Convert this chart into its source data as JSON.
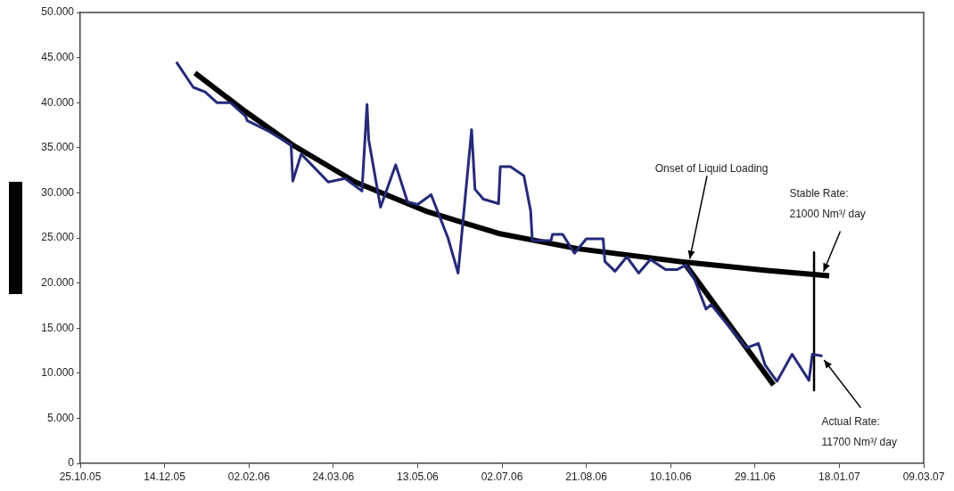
{
  "chart_data": {
    "type": "line",
    "marker": "none",
    "line_style": "solid",
    "legend": false,
    "grid": false,
    "xlim": [
      "2005-10-25",
      "2007-03-09"
    ],
    "xticks": [
      {
        "value": "2005-10-25",
        "label": "25.10.05"
      },
      {
        "value": "2005-12-14",
        "label": "14.12.05"
      },
      {
        "value": "2006-02-02",
        "label": "02.02.06"
      },
      {
        "value": "2006-03-24",
        "label": "24.03.06"
      },
      {
        "value": "2006-05-13",
        "label": "13.05.06"
      },
      {
        "value": "2006-07-02",
        "label": "02.07.06"
      },
      {
        "value": "2006-08-21",
        "label": "21.08.06"
      },
      {
        "value": "2006-10-10",
        "label": "10.10.06"
      },
      {
        "value": "2006-11-29",
        "label": "29.11.06"
      },
      {
        "value": "2007-01-18",
        "label": "18.01.07"
      },
      {
        "value": "2007-03-09",
        "label": "09.03.07"
      }
    ],
    "ylim": [
      0,
      50000
    ],
    "yticks": [
      0,
      {
        "value": 5000,
        "label": "5.000"
      },
      {
        "value": 10000,
        "label": "10.000"
      },
      {
        "value": 15000,
        "label": "15.000"
      },
      {
        "value": 20000,
        "label": "20.000"
      },
      {
        "value": 25000,
        "label": "25.000"
      },
      {
        "value": 30000,
        "label": "30.000"
      },
      {
        "value": 35000,
        "label": "35.000"
      },
      {
        "value": 40000,
        "label": "40.000"
      },
      {
        "value": 45000,
        "label": "45.000"
      },
      {
        "value": 50000,
        "label": "50.000"
      }
    ],
    "series": [
      {
        "color": "#262a78",
        "x": [
          "2005-12-21",
          "2005-12-31",
          "2006-01-07",
          "2006-01-14",
          "2006-01-22",
          "2006-01-31",
          "2006-02-01",
          "2006-02-13",
          "2006-02-27",
          "2006-02-28",
          "2006-03-05",
          "2006-03-21",
          "2006-03-31",
          "2006-04-10",
          "2006-04-13",
          "2006-04-14",
          "2006-04-21",
          "2006-04-30",
          "2006-05-07",
          "2006-05-13",
          "2006-05-21",
          "2006-05-31",
          "2006-06-06",
          "2006-06-14",
          "2006-06-16",
          "2006-06-21",
          "2006-06-30",
          "2006-07-01",
          "2006-07-07",
          "2006-07-15",
          "2006-07-19",
          "2006-07-20",
          "2006-07-31",
          "2006-08-01",
          "2006-08-07",
          "2006-08-14",
          "2006-08-21",
          "2006-08-31",
          "2006-09-01",
          "2006-09-07",
          "2006-09-14",
          "2006-09-21",
          "2006-09-28",
          "2006-10-07",
          "2006-10-14",
          "2006-10-19",
          "2006-10-24",
          "2006-10-31",
          "2006-11-03",
          "2006-11-24",
          "2006-12-01",
          "2006-12-05",
          "2006-12-12",
          "2006-12-21",
          "2006-12-31",
          "2007-01-02",
          "2007-01-08"
        ],
        "values": [
          44500,
          41700,
          41200,
          40000,
          40000,
          38500,
          38000,
          36900,
          35300,
          31300,
          34300,
          31200,
          31600,
          30200,
          39800,
          35900,
          28400,
          33100,
          29000,
          28700,
          29800,
          25000,
          21100,
          37000,
          30400,
          29300,
          28800,
          32900,
          32900,
          31900,
          28000,
          24700,
          24700,
          25400,
          25400,
          23300,
          24900,
          24900,
          22400,
          21300,
          22900,
          21100,
          22600,
          21500,
          21500,
          22000,
          20500,
          17100,
          17600,
          12800,
          13300,
          10900,
          9100,
          12100,
          9200,
          12100,
          11900
        ]
      },
      {
        "color": "#000000",
        "x": [
          "2006-01-01",
          "2006-01-31",
          "2006-02-28",
          "2006-04-06",
          "2006-05-19",
          "2006-06-30",
          "2006-08-16",
          "2006-10-19",
          "2006-12-06",
          "2007-01-12"
        ],
        "values": [
          43300,
          39000,
          35300,
          31200,
          27900,
          25500,
          23800,
          22300,
          21400,
          20800
        ]
      },
      {
        "color": "#000000",
        "x": [
          "2006-10-19",
          "2006-12-10"
        ],
        "values": [
          22000,
          8700
        ]
      },
      {
        "color": "#000000",
        "x": [
          "2007-01-03",
          "2007-01-03"
        ],
        "values": [
          23400,
          8100
        ]
      }
    ],
    "annotations": [
      {
        "text": "Onset of Liquid Loading",
        "x": "2006-10-21",
        "y": 22400
      },
      {
        "text": "Stable Rate:\n21000 Nm³/ day",
        "x": "2007-01-08",
        "y": 21000
      },
      {
        "text": "Actual Rate:\n11700 Nm³/ day",
        "x": "2007-01-08",
        "y": 11700
      }
    ]
  }
}
